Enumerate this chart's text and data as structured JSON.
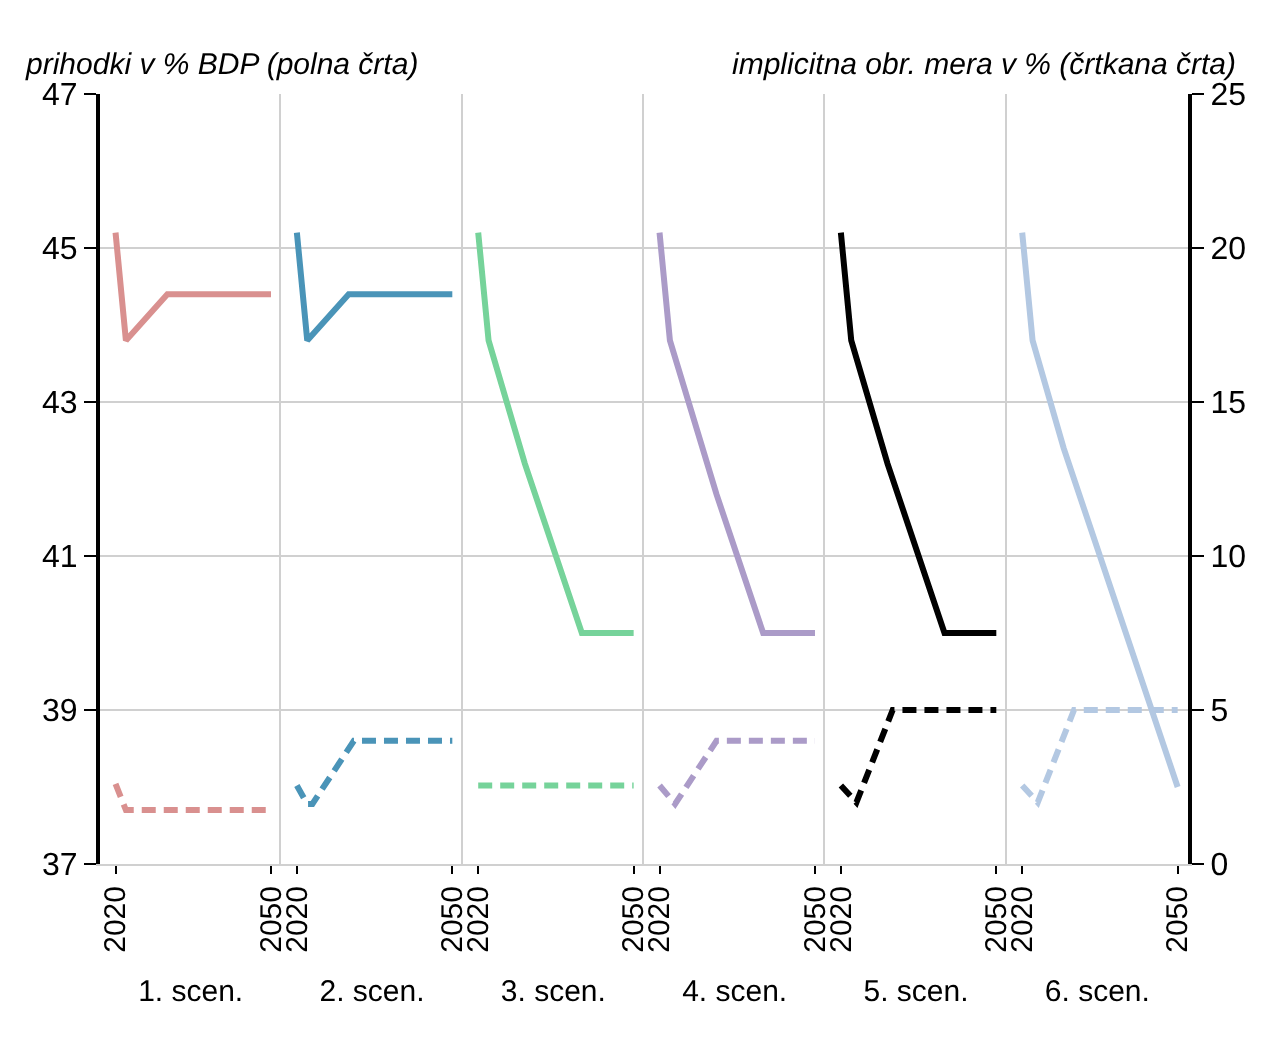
{
  "chart_data": [
    {
      "type": "line",
      "ylabel": "prihodki v % BDP (polna črta)",
      "xlabel": "1. scen.",
      "xlim": [
        2017,
        2052
      ],
      "xticks": [
        2020,
        2050
      ],
      "ylim": [
        37,
        47
      ],
      "yticks": [
        37,
        39,
        41,
        43,
        45,
        47
      ],
      "y2lim": [
        0,
        25
      ],
      "grid": "y",
      "tick_labels": "xy",
      "series": [
        {
          "color": "#d9908f",
          "line_style": "solid",
          "x": [
            2020,
            2022,
            2030,
            2050
          ],
          "values": [
            45.2,
            43.8,
            44.4,
            44.4
          ]
        },
        {
          "color": "#d9908f",
          "line_style": "dashed",
          "axis": "y2",
          "x": [
            2020,
            2022,
            2050
          ],
          "values": [
            2.6,
            1.75,
            1.75
          ]
        }
      ]
    },
    {
      "type": "line",
      "xlabel": "2. scen.",
      "xlim": [
        2017,
        2052
      ],
      "xticks": [
        2020,
        2050
      ],
      "ylim": [
        37,
        47
      ],
      "yticks": [
        37,
        39,
        41,
        43,
        45,
        47
      ],
      "y2lim": [
        0,
        25
      ],
      "y2ticks": [
        0,
        5,
        10,
        15,
        20,
        25
      ],
      "grid": "y",
      "tick_labels": "x",
      "series": [
        {
          "color": "#4a94b8",
          "line_style": "solid",
          "x": [
            2020,
            2022,
            2030,
            2050
          ],
          "values": [
            45.2,
            43.8,
            44.4,
            44.4
          ]
        },
        {
          "color": "#4a94b8",
          "line_style": "dashed",
          "axis": "y2",
          "x": [
            2020,
            2022,
            2023,
            2031,
            2050
          ],
          "values": [
            2.55,
            1.95,
            1.95,
            4.0,
            4.0
          ]
        }
      ]
    },
    {
      "type": "line",
      "xlabel": "3. scen.",
      "xlim": [
        2017,
        2052
      ],
      "xticks": [
        2020,
        2050
      ],
      "ylim": [
        37,
        47
      ],
      "yticks": [
        37,
        39,
        41,
        43,
        45,
        47
      ],
      "y2lim": [
        0,
        25
      ],
      "y2ticks": [
        0,
        5,
        10,
        15,
        20,
        25
      ],
      "grid": "y",
      "tick_labels": "x",
      "series": [
        {
          "color": "#76d39a",
          "line_style": "solid",
          "x": [
            2020,
            2022,
            2029,
            2040,
            2050
          ],
          "values": [
            45.2,
            43.8,
            42.2,
            40.0,
            40.0
          ]
        },
        {
          "color": "#76d39a",
          "line_style": "dashed",
          "axis": "y2",
          "x": [
            2020,
            2050
          ],
          "values": [
            2.55,
            2.55
          ]
        }
      ]
    },
    {
      "type": "line",
      "xlabel": "4. scen.",
      "xlim": [
        2017,
        2052
      ],
      "xticks": [
        2020,
        2050
      ],
      "ylim": [
        37,
        47
      ],
      "yticks": [
        37,
        39,
        41,
        43,
        45,
        47
      ],
      "y2lim": [
        0,
        25
      ],
      "y2ticks": [
        0,
        5,
        10,
        15,
        20,
        25
      ],
      "grid": "y",
      "tick_labels": "x",
      "series": [
        {
          "color": "#ab9bc8",
          "line_style": "solid",
          "x": [
            2020,
            2022,
            2031,
            2040,
            2050
          ],
          "values": [
            45.2,
            43.8,
            41.8,
            40.0,
            40.0
          ]
        },
        {
          "color": "#ab9bc8",
          "line_style": "dashed",
          "axis": "y2",
          "x": [
            2020,
            2023,
            2031,
            2050
          ],
          "values": [
            2.55,
            1.95,
            4.0,
            4.0
          ]
        }
      ]
    },
    {
      "type": "line",
      "xlabel": "5. scen.",
      "xlim": [
        2017,
        2052
      ],
      "xticks": [
        2020,
        2050
      ],
      "ylim": [
        37,
        47
      ],
      "yticks": [
        37,
        39,
        41,
        43,
        45,
        47
      ],
      "y2lim": [
        0,
        25
      ],
      "y2ticks": [
        0,
        5,
        10,
        15,
        20,
        25
      ],
      "grid": "y",
      "tick_labels": "x",
      "series": [
        {
          "color": "#000000",
          "line_style": "solid",
          "x": [
            2020,
            2022,
            2029,
            2040,
            2050
          ],
          "values": [
            45.2,
            43.8,
            42.2,
            40.0,
            40.0
          ]
        },
        {
          "color": "#000000",
          "line_style": "dashed",
          "axis": "y2",
          "x": [
            2020,
            2023,
            2030,
            2050
          ],
          "values": [
            2.55,
            2.0,
            5.0,
            5.0
          ]
        }
      ]
    },
    {
      "type": "line",
      "xlabel": "6. scen.",
      "y2label": "implicitna obr. mera v % (črtkana črta)",
      "xlim": [
        2017,
        2052
      ],
      "xticks": [
        2020,
        2050
      ],
      "ylim": [
        37,
        47
      ],
      "y2lim": [
        0,
        25
      ],
      "y2ticks": [
        0,
        5,
        10,
        15,
        20,
        25
      ],
      "grid": "y",
      "tick_labels": "xy2",
      "series": [
        {
          "color": "#b3c8e2",
          "line_style": "solid",
          "x": [
            2020,
            2022,
            2028,
            2050
          ],
          "values": [
            45.2,
            43.8,
            42.4,
            38.0
          ]
        },
        {
          "color": "#b3c8e2",
          "line_style": "dashed",
          "axis": "y2",
          "x": [
            2020,
            2023,
            2030,
            2050
          ],
          "values": [
            2.55,
            2.0,
            5.0,
            5.0
          ]
        }
      ]
    }
  ]
}
